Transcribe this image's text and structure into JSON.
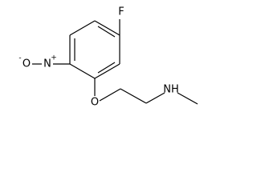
{
  "atoms": [
    {
      "label": "F"
    },
    {
      "label": "N",
      "charge": "+"
    },
    {
      "label": "O",
      "charge": "-"
    },
    {
      "label": "O"
    },
    {
      "label": "NH"
    }
  ]
}
